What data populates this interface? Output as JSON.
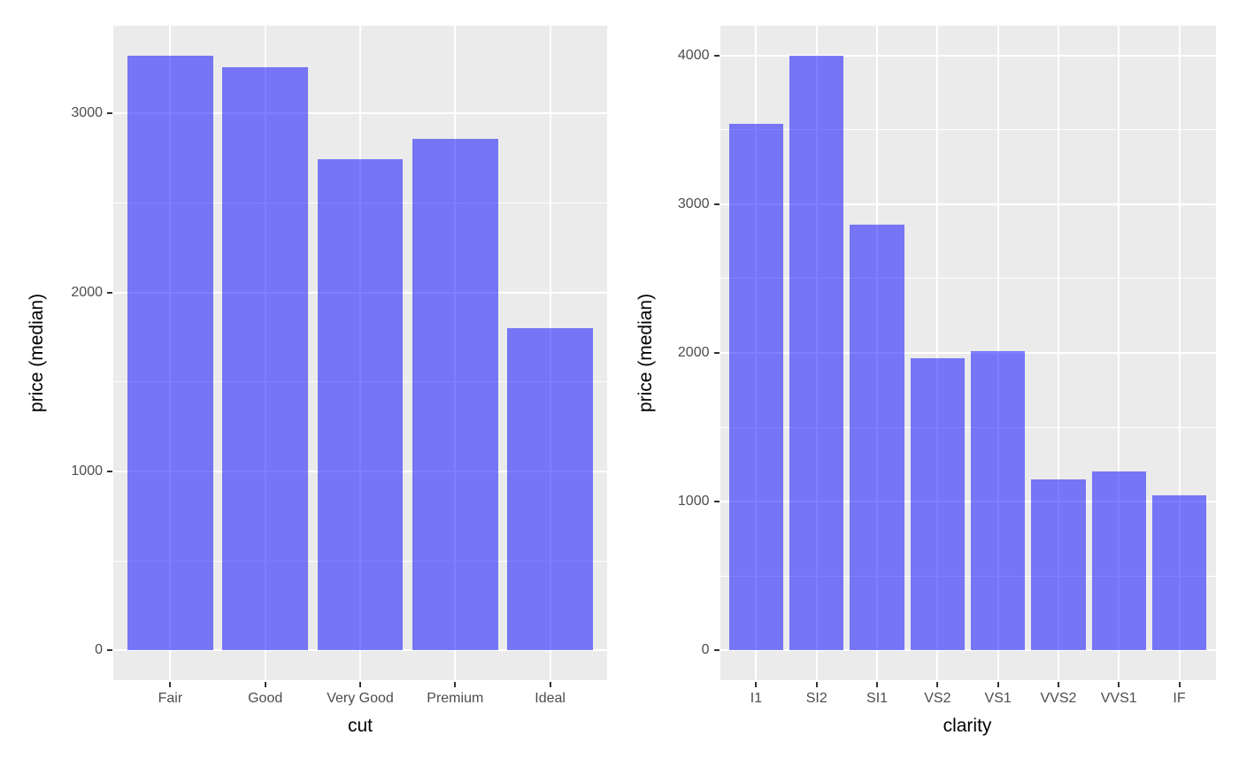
{
  "figure": {
    "background": "#FFFFFF",
    "legend": "none",
    "grid": "on"
  },
  "style": {
    "panel_bg": "#EBEBEB",
    "gridline_color": "#FFFFFF",
    "bar_fill": "rgba(0,0,255,0.5)",
    "tick_label_color": "#4D4D4D",
    "axis_title_color": "#000000",
    "tick_mark_color": "#333333"
  },
  "chart_data": [
    {
      "type": "bar",
      "title": "",
      "xlabel": "cut",
      "ylabel": "price (median)",
      "categories": [
        "Fair",
        "Good",
        "Very Good",
        "Premium",
        "Ideal"
      ],
      "values": [
        3325,
        3260,
        2745,
        2860,
        1800
      ],
      "y_ticks": [
        0,
        1000,
        2000,
        3000
      ],
      "minor_step": 500,
      "ylim": [
        -166,
        3491
      ],
      "legend_position": "none",
      "grid": "on"
    },
    {
      "type": "bar",
      "title": "",
      "xlabel": "clarity",
      "ylabel": "price (median)",
      "categories": [
        "I1",
        "SI2",
        "SI1",
        "VS2",
        "VS1",
        "VVS2",
        "VVS1",
        "IF"
      ],
      "values": [
        3540,
        4000,
        2860,
        1965,
        2010,
        1150,
        1205,
        1045
      ],
      "y_ticks": [
        0,
        1000,
        2000,
        3000,
        4000
      ],
      "minor_step": 500,
      "ylim": [
        -200,
        4200
      ],
      "legend_position": "none",
      "grid": "on"
    }
  ]
}
